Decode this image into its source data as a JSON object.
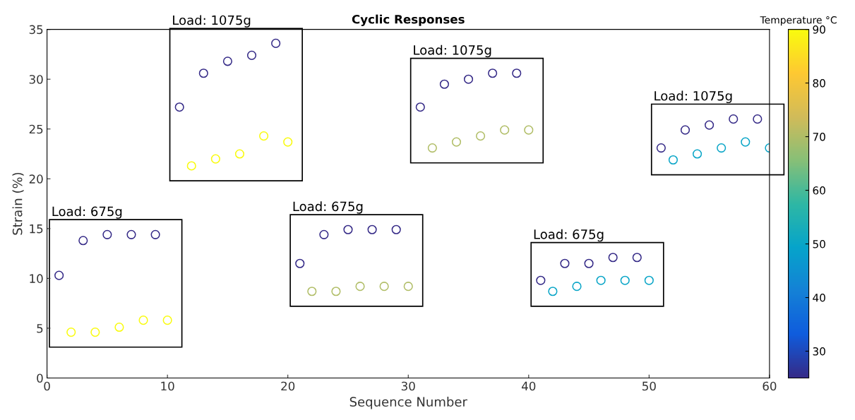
{
  "chart_data": {
    "type": "scatter",
    "title": "Cyclic Responses",
    "xlabel": "Sequence Number",
    "ylabel": "Strain (%)",
    "clabel": "Temperature °C",
    "x": [
      1,
      3,
      5,
      7,
      9,
      2,
      4,
      6,
      8,
      10,
      11,
      13,
      15,
      17,
      19,
      12,
      14,
      16,
      18,
      20,
      21,
      23,
      25,
      27,
      29,
      22,
      24,
      26,
      28,
      30,
      31,
      33,
      35,
      37,
      39,
      32,
      34,
      36,
      38,
      40,
      41,
      43,
      45,
      47,
      49,
      42,
      44,
      46,
      48,
      50,
      51,
      53,
      55,
      57,
      59,
      52,
      54,
      56,
      58,
      60
    ],
    "values": [
      10.3,
      13.8,
      14.4,
      14.4,
      14.4,
      4.6,
      4.6,
      5.1,
      5.8,
      5.8,
      27.2,
      30.6,
      31.8,
      32.4,
      33.6,
      21.3,
      22.0,
      22.5,
      24.3,
      23.7,
      11.5,
      14.4,
      14.9,
      14.9,
      14.9,
      8.7,
      8.7,
      9.2,
      9.2,
      9.2,
      27.2,
      29.5,
      30.0,
      30.6,
      30.6,
      23.1,
      23.7,
      24.3,
      24.9,
      24.9,
      9.8,
      11.5,
      11.5,
      12.1,
      12.1,
      8.7,
      9.2,
      9.8,
      9.8,
      9.8,
      23.1,
      24.9,
      25.4,
      26.0,
      26.0,
      21.9,
      22.5,
      23.1,
      23.7,
      23.1
    ],
    "cvalues": [
      25,
      25,
      25,
      25,
      25,
      90,
      90,
      90,
      90,
      90,
      25,
      25,
      25,
      25,
      25,
      90,
      90,
      90,
      90,
      90,
      25,
      25,
      25,
      25,
      25,
      70,
      70,
      70,
      70,
      70,
      25,
      25,
      25,
      25,
      25,
      70,
      70,
      70,
      70,
      70,
      25,
      25,
      25,
      25,
      25,
      50,
      50,
      50,
      50,
      50,
      25,
      25,
      25,
      25,
      25,
      50,
      50,
      50,
      50,
      50
    ],
    "clim": [
      25,
      90
    ],
    "cticks": [
      30,
      40,
      50,
      60,
      70,
      80,
      90
    ],
    "xlim": [
      0,
      60
    ],
    "xticks": [
      0,
      10,
      20,
      30,
      40,
      50,
      60
    ],
    "ylim": [
      0,
      35
    ],
    "yticks": [
      0,
      5,
      10,
      15,
      20,
      25,
      30,
      35
    ],
    "marker": "circle",
    "grid": false,
    "annotations": [
      "Load: 675g",
      "Load: 1075g",
      "Load: 675g",
      "Load: 1075g",
      "Load: 675g",
      "Load: 1075g"
    ]
  }
}
